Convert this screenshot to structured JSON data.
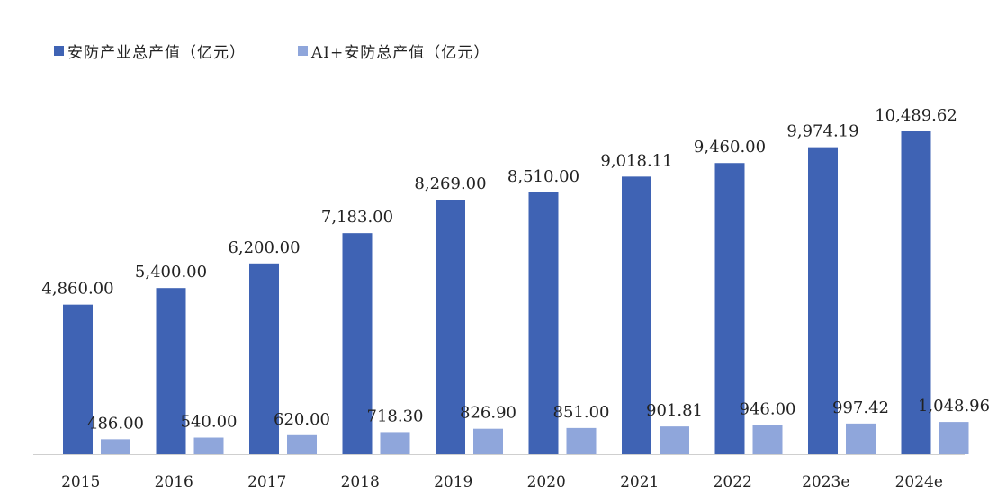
{
  "chart_data": {
    "type": "bar",
    "categories": [
      "2015",
      "2016",
      "2017",
      "2018",
      "2019",
      "2020",
      "2021",
      "2022",
      "2023e",
      "2024e"
    ],
    "series": [
      {
        "name": "安防产业总产值（亿元）",
        "color": "#3F63B4",
        "values": [
          4860.0,
          5400.0,
          6200.0,
          7183.0,
          8269.0,
          8510.0,
          9018.11,
          9460.0,
          9974.19,
          10489.62
        ],
        "labels": [
          "4,860.00",
          "5,400.00",
          "6,200.00",
          "7,183.00",
          "8,269.00",
          "8,510.00",
          "9,018.11",
          "9,460.00",
          "9,974.19",
          "10,489.62"
        ]
      },
      {
        "name": "AI+安防总产值（亿元）",
        "color": "#8FA6DB",
        "values": [
          486.0,
          540.0,
          620.0,
          718.3,
          826.9,
          851.0,
          901.81,
          946.0,
          997.42,
          1048.96
        ],
        "labels": [
          "486.00",
          "540.00",
          "620.00",
          "718.30",
          "826.90",
          "851.00",
          "901.81",
          "946.00",
          "997.42",
          "1,048.96"
        ]
      }
    ],
    "title": "",
    "xlabel": "",
    "ylabel": "",
    "ylim": [
      0,
      12000
    ],
    "grid": false,
    "legend_position": "top-left"
  }
}
